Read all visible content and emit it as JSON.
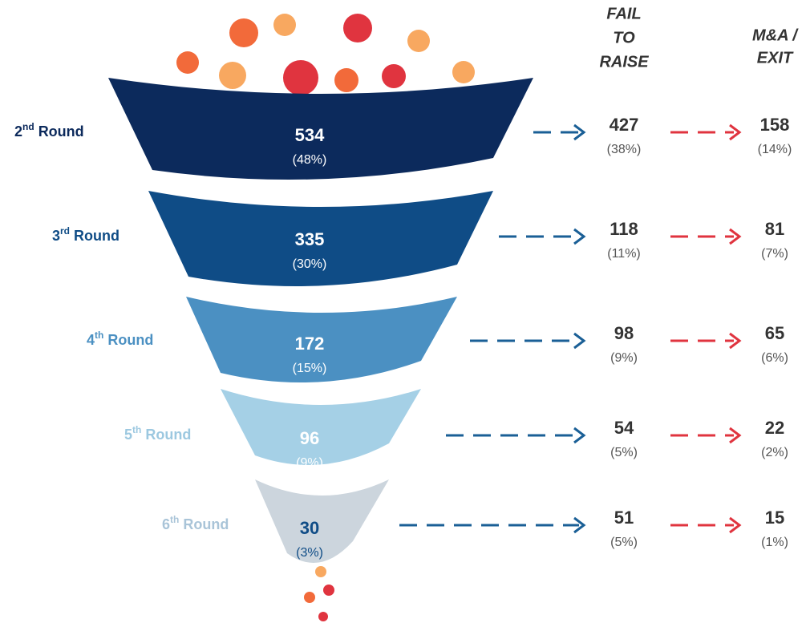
{
  "chart_data": {
    "type": "funnel",
    "stage_labels": [
      {
        "number": "2",
        "suffix": "nd",
        "word": "Round"
      },
      {
        "number": "3",
        "suffix": "rd",
        "word": "Round"
      },
      {
        "number": "4",
        "suffix": "th",
        "word": "Round"
      },
      {
        "number": "5",
        "suffix": "th",
        "word": "Round"
      },
      {
        "number": "6",
        "suffix": "th",
        "word": "Round"
      }
    ],
    "stage_colors": [
      "#0c2a5c",
      "#0f4c86",
      "#4b90c2",
      "#a5d0e6",
      "#ccd5dd"
    ],
    "label_colors": [
      "#0c2a5c",
      "#0f4c86",
      "#4b90c2",
      "#9cc8e0",
      "#a9c4d8"
    ],
    "number_colors": [
      "#ffffff",
      "#ffffff",
      "#ffffff",
      "#ffffff",
      "#0f4c86"
    ],
    "funnel": {
      "values": [
        534,
        335,
        172,
        96,
        30
      ],
      "percent_labels": [
        "(48%)",
        "(30%)",
        "(15%)",
        "(9%)",
        "(3%)"
      ]
    },
    "fail_to_raise": {
      "header": [
        "FAIL",
        "TO",
        "RAISE"
      ],
      "color": "#1a5f96",
      "values": [
        427,
        118,
        98,
        54,
        51
      ],
      "percent_labels": [
        "(38%)",
        "(11%)",
        "(9%)",
        "(5%)",
        "(5%)"
      ]
    },
    "exit": {
      "header": [
        "M&A /",
        "EXIT"
      ],
      "color": "#e0343f",
      "values": [
        158,
        81,
        65,
        22,
        15
      ],
      "percent_labels": [
        "(14%)",
        "(7%)",
        "(6%)",
        "(2%)",
        "(1%)"
      ]
    }
  }
}
